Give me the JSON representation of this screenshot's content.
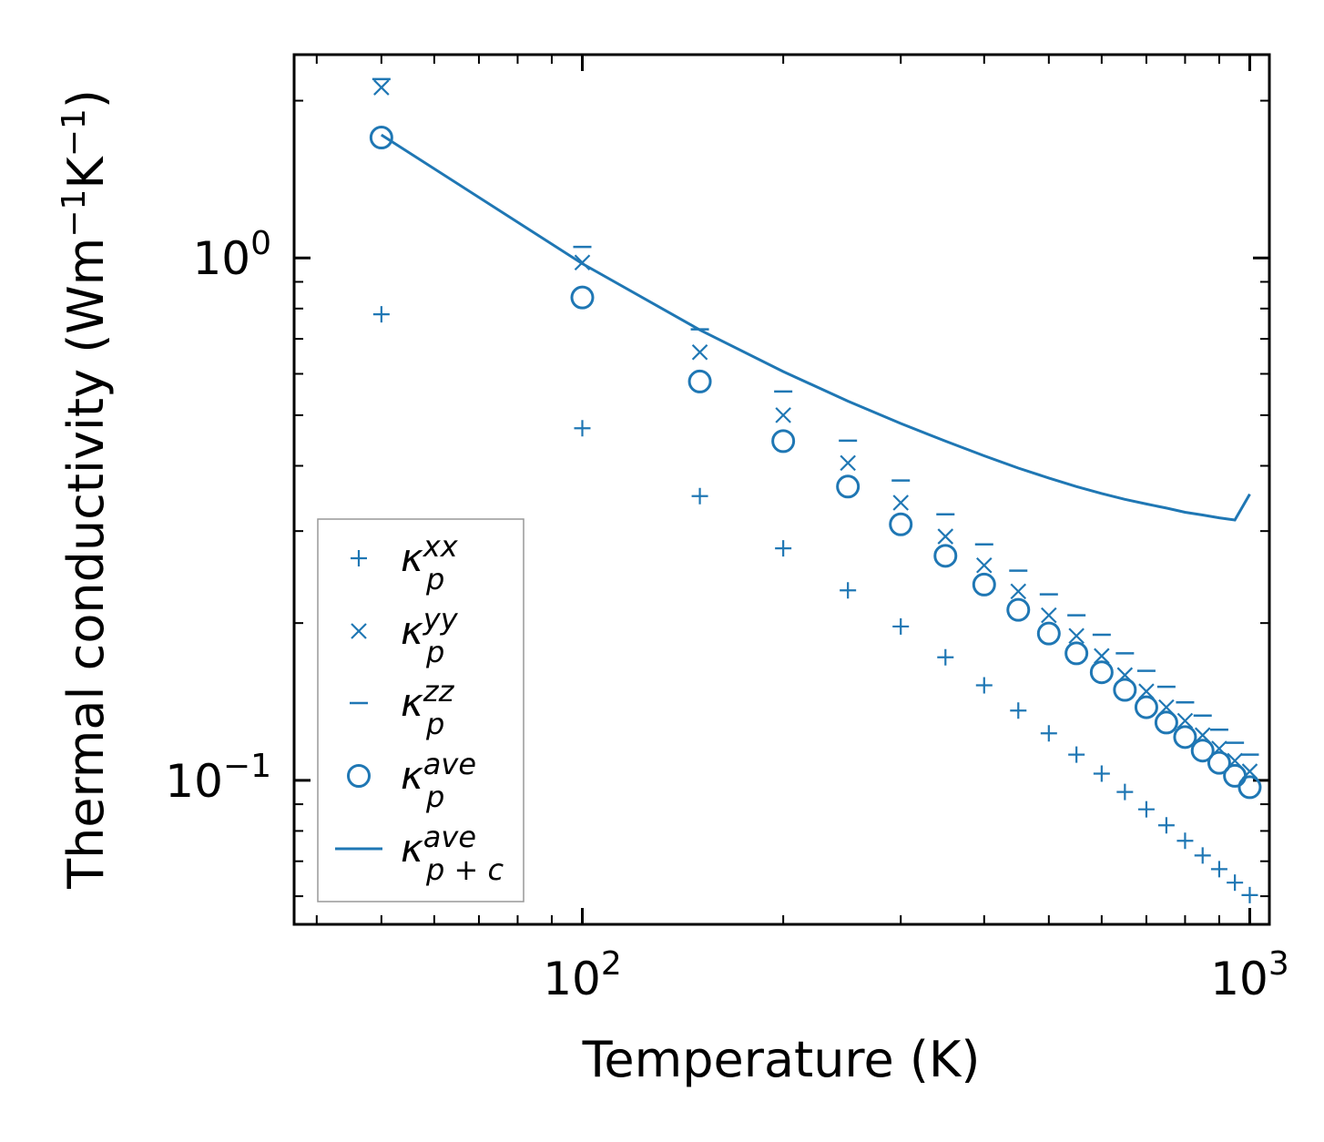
{
  "chart_data": {
    "type": "scatter",
    "title": "",
    "xlabel": "Temperature (K)",
    "ylabel": "Thermal conductivity (Wm⁻¹K⁻¹)",
    "xscale": "log",
    "yscale": "log",
    "xlim": [
      37,
      1070
    ],
    "ylim": [
      0.053,
      2.45
    ],
    "xtick_labels": [
      {
        "value": 100,
        "base": "10",
        "exp": "2"
      },
      {
        "value": 1000,
        "base": "10",
        "exp": "3"
      }
    ],
    "ytick_labels": [
      {
        "value": 0.1,
        "base": "10",
        "exp": "−1"
      },
      {
        "value": 1.0,
        "base": "10",
        "exp": "0"
      }
    ],
    "x": [
      50,
      100,
      150,
      200,
      250,
      300,
      350,
      400,
      450,
      500,
      550,
      600,
      650,
      700,
      750,
      800,
      850,
      900,
      950,
      1000
    ],
    "series": [
      {
        "name": "kxx",
        "marker": "plus",
        "values": [
          0.78,
          0.472,
          0.35,
          0.278,
          0.231,
          0.197,
          0.172,
          0.152,
          0.136,
          0.123,
          0.112,
          0.103,
          0.095,
          0.088,
          0.082,
          0.0766,
          0.0718,
          0.0676,
          0.0637,
          0.0603
        ]
      },
      {
        "name": "kyy",
        "marker": "x",
        "values": [
          2.12,
          0.98,
          0.66,
          0.5,
          0.405,
          0.34,
          0.293,
          0.258,
          0.23,
          0.207,
          0.189,
          0.173,
          0.159,
          0.148,
          0.138,
          0.13,
          0.122,
          0.115,
          0.109,
          0.104
        ]
      },
      {
        "name": "kzz",
        "marker": "hline",
        "values": [
          2.2,
          1.05,
          0.73,
          0.555,
          0.447,
          0.375,
          0.323,
          0.283,
          0.252,
          0.227,
          0.207,
          0.19,
          0.175,
          0.162,
          0.151,
          0.141,
          0.133,
          0.125,
          0.118,
          0.112
        ]
      },
      {
        "name": "kave",
        "marker": "circle",
        "values": [
          1.7,
          0.84,
          0.58,
          0.446,
          0.365,
          0.309,
          0.269,
          0.237,
          0.212,
          0.191,
          0.175,
          0.161,
          0.149,
          0.138,
          0.129,
          0.121,
          0.114,
          0.108,
          0.102,
          0.097
        ]
      },
      {
        "name": "kpc",
        "marker": "line",
        "values": [
          1.72,
          0.975,
          0.728,
          0.606,
          0.532,
          0.482,
          0.446,
          0.418,
          0.396,
          0.379,
          0.365,
          0.354,
          0.345,
          0.338,
          0.332,
          0.326,
          0.322,
          0.318,
          0.315,
          0.353
        ]
      }
    ],
    "legend": {
      "location": "lower-left",
      "entries": [
        {
          "series": "kxx",
          "base": "κ",
          "sub": "p",
          "sup": "xx"
        },
        {
          "series": "kyy",
          "base": "κ",
          "sub": "p",
          "sup": "yy"
        },
        {
          "series": "kzz",
          "base": "κ",
          "sub": "p",
          "sup": "zz"
        },
        {
          "series": "kave",
          "base": "κ",
          "sub": "p",
          "sup": "ave"
        },
        {
          "series": "kpc",
          "base": "κ",
          "sub": "p + c",
          "sup": "ave"
        }
      ]
    },
    "color": "#1f77b4",
    "grid": false
  }
}
